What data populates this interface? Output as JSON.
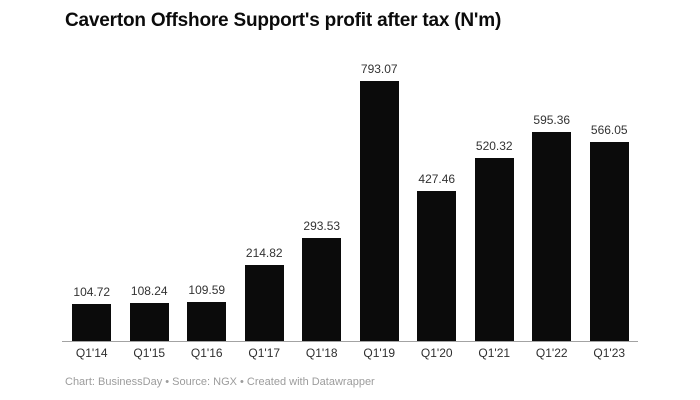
{
  "title": "Caverton Offshore Support's profit after tax (N'm)",
  "footer": "Chart: BusinessDay • Source: NGX • Created with Datawrapper",
  "colors": {
    "background": "#ffffff",
    "bar": "#0b0b0b",
    "title_text": "#0b0b0b",
    "label_text": "#333333",
    "axis_line": "#a3a3a3",
    "footer_text": "#9c9c9c"
  },
  "chart_data": {
    "type": "bar",
    "title": "Caverton Offshore Support's profit after tax (N'm)",
    "categories": [
      "Q1'14",
      "Q1'15",
      "Q1'16",
      "Q1'17",
      "Q1'18",
      "Q1'19",
      "Q1'20",
      "Q1'21",
      "Q1'22",
      "Q1'23"
    ],
    "values": [
      104.72,
      108.24,
      109.59,
      214.82,
      293.53,
      793.07,
      427.46,
      520.32,
      595.36,
      566.05
    ],
    "value_labels": [
      "104.72",
      "108.24",
      "109.59",
      "214.82",
      "293.53",
      "793.07",
      "427.46",
      "520.32",
      "595.36",
      "566.05"
    ],
    "xlabel": "",
    "ylabel": "",
    "ylim": [
      0,
      793.07
    ],
    "grid": false,
    "legend": false,
    "bar_color": "#0b0b0b",
    "data_labels_shown": true,
    "attribution": "Chart: BusinessDay • Source: NGX • Created with Datawrapper"
  }
}
